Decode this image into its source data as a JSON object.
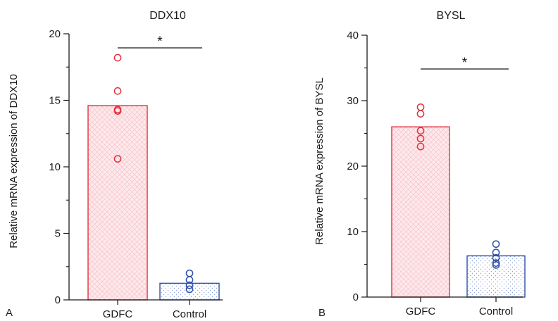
{
  "chart_data": [
    {
      "type": "bar",
      "panel_label": "A",
      "title": "DDX10",
      "ylabel": "Relative mRNA expression of DDX10",
      "xlabel": "",
      "categories": [
        "GDFC",
        "Control"
      ],
      "values": [
        14.6,
        1.25
      ],
      "points": [
        [
          18.2,
          15.7,
          14.3,
          14.2,
          10.6
        ],
        [
          2.0,
          1.5,
          1.1,
          0.8
        ]
      ],
      "ylim": [
        0,
        20
      ],
      "yticks": [
        0,
        5,
        10,
        15,
        20
      ],
      "y_minor_step": 2.5,
      "significance": {
        "text": "*",
        "between": [
          "GDFC",
          "Control"
        ]
      },
      "bar_fills": [
        "#fbe3e6",
        "#eef2fb"
      ],
      "bar_edges": [
        "#e0303e",
        "#2f4fa8"
      ],
      "grid": false
    },
    {
      "type": "bar",
      "panel_label": "B",
      "title": "BYSL",
      "ylabel": "Relative mRNA expression of BYSL",
      "xlabel": "",
      "categories": [
        "GDFC",
        "Control"
      ],
      "values": [
        26.0,
        6.3
      ],
      "points": [
        [
          29.0,
          28.0,
          25.4,
          24.2,
          23.0
        ],
        [
          8.1,
          6.8,
          6.0,
          5.2,
          4.9
        ]
      ],
      "ylim": [
        0,
        40
      ],
      "yticks": [
        0,
        10,
        20,
        30,
        40
      ],
      "y_minor_step": 5,
      "significance": {
        "text": "*",
        "between": [
          "GDFC",
          "Control"
        ]
      },
      "bar_fills": [
        "#fbe3e6",
        "#eef2fb"
      ],
      "bar_edges": [
        "#e0303e",
        "#2f4fa8"
      ],
      "grid": false
    }
  ]
}
